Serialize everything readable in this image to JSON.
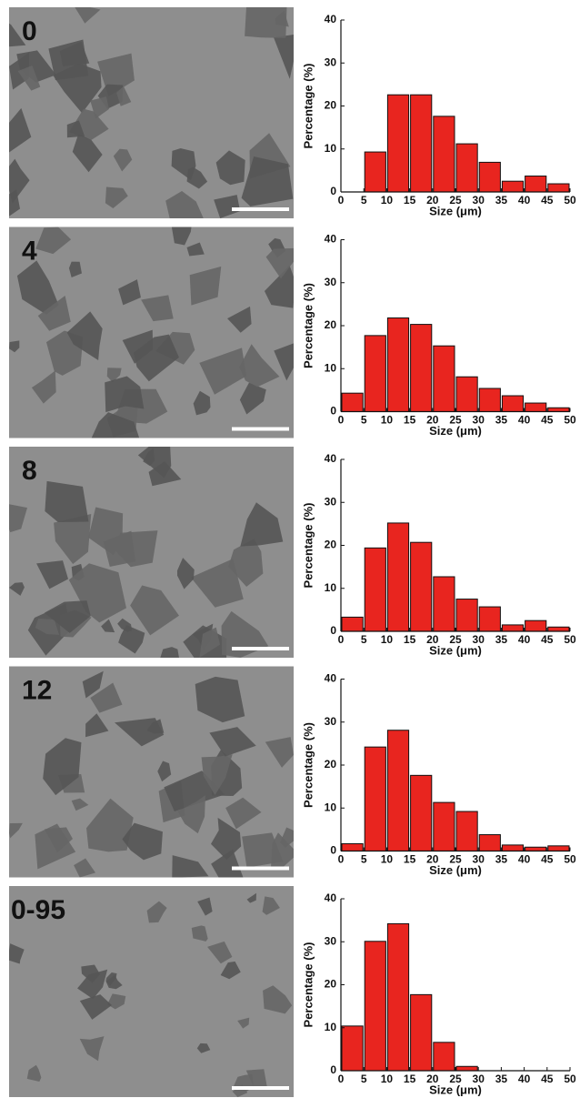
{
  "micrographs": [
    {
      "label": "0",
      "label_color": "#111111"
    },
    {
      "label": "4",
      "label_color": "#3d56a8"
    },
    {
      "label": "8",
      "label_color": "#3d56a8"
    },
    {
      "label": "12",
      "label_color": "#3d56a8"
    },
    {
      "label": "0-95",
      "label_color": "#e5302a"
    }
  ],
  "chart_data": [
    {
      "type": "histogram",
      "x_label": "Size (μm)",
      "y_label": "Percentage (%)",
      "color": "#e8251f",
      "bins": [
        0,
        5,
        10,
        15,
        20,
        25,
        30,
        35,
        40,
        45,
        50
      ],
      "values": [
        0,
        9.3,
        22.6,
        22.6,
        17.6,
        11.2,
        6.9,
        2.5,
        3.7,
        1.9
      ],
      "xlim": [
        0,
        50
      ],
      "xticks": [
        0,
        5,
        10,
        15,
        20,
        25,
        30,
        35,
        40,
        45,
        50
      ],
      "ylim": [
        0,
        40
      ],
      "yticks": [
        0,
        10,
        20,
        30,
        40
      ]
    },
    {
      "type": "histogram",
      "x_label": "Size (μm)",
      "y_label": "Percentage (%)",
      "color": "#e8251f",
      "bins": [
        0,
        5,
        10,
        15,
        20,
        25,
        30,
        35,
        40,
        45,
        50
      ],
      "values": [
        4.3,
        17.7,
        21.8,
        20.3,
        15.3,
        8.1,
        5.4,
        3.7,
        2.0,
        0.9
      ],
      "xlim": [
        0,
        50
      ],
      "xticks": [
        0,
        5,
        10,
        15,
        20,
        25,
        30,
        35,
        40,
        45,
        50
      ],
      "ylim": [
        0,
        40
      ],
      "yticks": [
        0,
        10,
        20,
        30,
        40
      ]
    },
    {
      "type": "histogram",
      "x_label": "Size (μm)",
      "y_label": "Percentage (%)",
      "color": "#e8251f",
      "bins": [
        0,
        5,
        10,
        15,
        20,
        25,
        30,
        35,
        40,
        45,
        50
      ],
      "values": [
        3.3,
        19.4,
        25.2,
        20.7,
        12.7,
        7.5,
        5.7,
        1.5,
        2.5,
        1.0
      ],
      "xlim": [
        0,
        50
      ],
      "xticks": [
        0,
        5,
        10,
        15,
        20,
        25,
        30,
        35,
        40,
        45,
        50
      ],
      "ylim": [
        0,
        40
      ],
      "yticks": [
        0,
        10,
        20,
        30,
        40
      ]
    },
    {
      "type": "histogram",
      "x_label": "Size (μm)",
      "y_label": "Percentage (%)",
      "color": "#e8251f",
      "bins": [
        0,
        5,
        10,
        15,
        20,
        25,
        30,
        35,
        40,
        45,
        50
      ],
      "values": [
        1.7,
        24.2,
        28.1,
        17.6,
        11.3,
        9.2,
        3.8,
        1.4,
        0.9,
        1.2
      ],
      "xlim": [
        0,
        50
      ],
      "xticks": [
        0,
        5,
        10,
        15,
        20,
        25,
        30,
        35,
        40,
        45,
        50
      ],
      "ylim": [
        0,
        40
      ],
      "yticks": [
        0,
        10,
        20,
        30,
        40
      ]
    },
    {
      "type": "histogram",
      "x_label": "Size (μm)",
      "y_label": "Percentage (%)",
      "color": "#e8251f",
      "bins": [
        0,
        5,
        10,
        15,
        20,
        25,
        30,
        35,
        40,
        45,
        50
      ],
      "values": [
        10.4,
        30.1,
        34.2,
        17.7,
        6.6,
        1.0,
        0,
        0,
        0,
        0
      ],
      "xlim": [
        0,
        50
      ],
      "xticks": [
        0,
        5,
        10,
        15,
        20,
        25,
        30,
        35,
        40,
        45,
        50
      ],
      "ylim": [
        0,
        40
      ],
      "yticks": [
        0,
        10,
        20,
        30,
        40
      ]
    }
  ]
}
